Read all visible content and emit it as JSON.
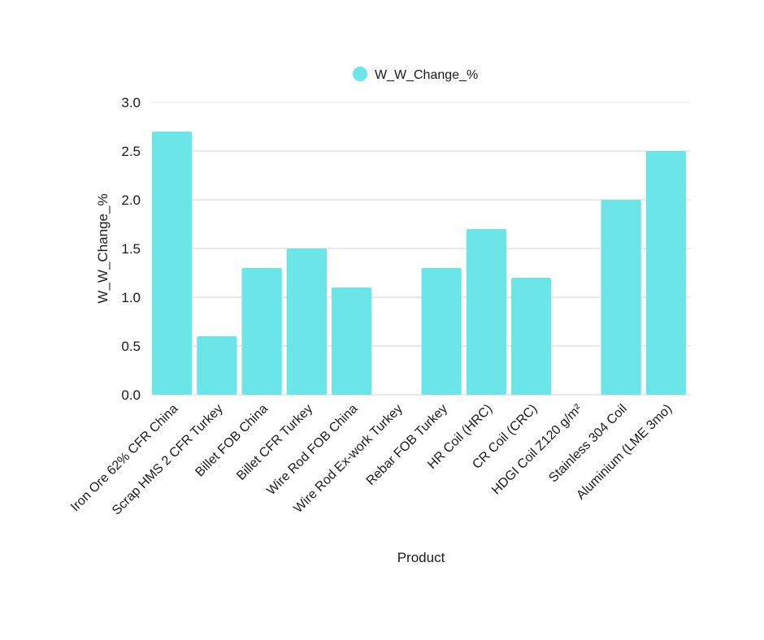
{
  "chart_data": {
    "type": "bar",
    "xlabel": "Product",
    "ylabel": "W_W_Change_%",
    "legend": {
      "position": "top-center",
      "entries": [
        "W_W_Change_%"
      ]
    },
    "ylim": [
      0,
      3.0
    ],
    "yticks": [
      "0.0",
      "0.5",
      "1.0",
      "1.5",
      "2.0",
      "2.5",
      "3.0"
    ],
    "grid": true,
    "color": "#6be5e8",
    "categories": [
      "Iron Ore 62% CFR China",
      "Scrap HMS 2 CFR Turkey",
      "Billet FOB China",
      "Billet CFR Turkey",
      "Wire Rod FOB China",
      "Wire Rod Ex-work Turkey",
      "Rebar FOB Turkey",
      "HR Coil (HRC)",
      "CR Coil (CRC)",
      "HDGI Coil Z120 g/m²",
      "Stainless 304 Coil",
      "Aluminium (LME 3mo)"
    ],
    "series": [
      {
        "name": "W_W_Change_%",
        "values": [
          2.7,
          0.6,
          1.3,
          1.5,
          1.1,
          0,
          1.3,
          1.7,
          1.2,
          0,
          2.0,
          2.5
        ]
      }
    ]
  }
}
